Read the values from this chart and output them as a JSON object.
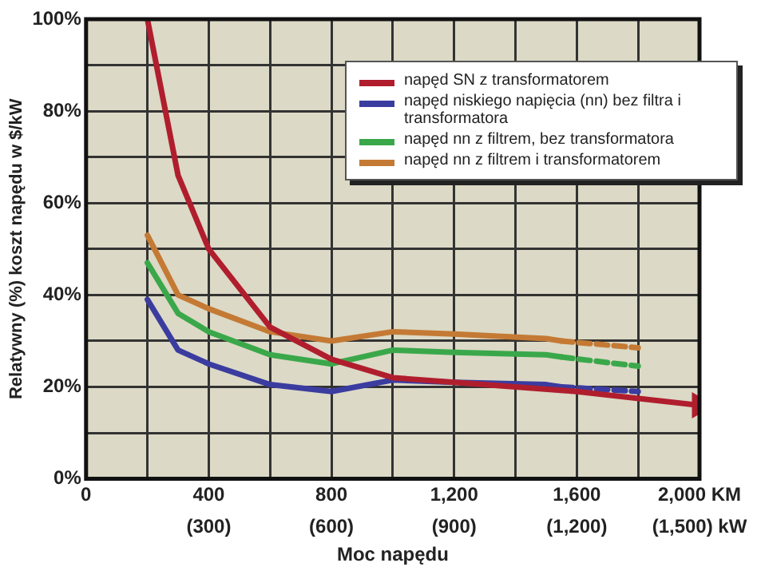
{
  "chart_data": {
    "type": "line",
    "xlabel": "Moc napędu",
    "ylabel": "Relatywny (%) koszt napędu w $/kW",
    "marker": "none",
    "grid": true,
    "legend": "top right",
    "xlim": [
      0,
      2000
    ],
    "xticks": [
      0,
      {
        "value": 200,
        "label": null
      },
      {
        "value": 400,
        "label": "400"
      },
      {
        "value": 600,
        "label": null
      },
      {
        "value": 800,
        "label": "800"
      },
      {
        "value": 1000,
        "label": null
      },
      {
        "value": 1200,
        "label": "1,200"
      },
      {
        "value": 1400,
        "label": null
      },
      {
        "value": 1600,
        "label": "1,600"
      },
      {
        "value": 1800,
        "label": null
      },
      {
        "value": 2000,
        "label": "2,000 KM"
      }
    ],
    "x2lim": [
      0,
      1500
    ],
    "x2ticks": [
      {
        "value": 300,
        "label": "(300)"
      },
      {
        "value": 600,
        "label": "(600)"
      },
      {
        "value": 900,
        "label": "(900)"
      },
      {
        "value": 1200,
        "label": "(1,200)"
      },
      {
        "value": 1500,
        "label": "(1,500) kW"
      }
    ],
    "ylim": [
      0,
      100
    ],
    "yticks": [
      {
        "value": 0,
        "label": "0%"
      },
      {
        "value": 10,
        "label": null
      },
      {
        "value": 20,
        "label": "20%"
      },
      {
        "value": 30,
        "label": null
      },
      {
        "value": 40,
        "label": "40%"
      },
      {
        "value": 50,
        "label": null
      },
      {
        "value": 60,
        "label": "60%"
      },
      {
        "value": 70,
        "label": null
      },
      {
        "value": 80,
        "label": "80%"
      },
      {
        "value": 90,
        "label": null
      },
      {
        "value": 100,
        "label": "100%"
      }
    ],
    "series": [
      {
        "name": "napęd SN z transformatorem",
        "color": "#b01e2e",
        "x": [
          200,
          300,
          400,
          600,
          800,
          1000,
          1200,
          1600,
          2000
        ],
        "values": [
          100,
          66,
          50,
          33,
          26,
          22,
          21,
          19,
          16
        ]
      },
      {
        "name": "napęd niskiego napięcia (nn) bez filtra i transformatora",
        "color": "#3b3ca0",
        "x": [
          200,
          300,
          400,
          600,
          800,
          1000,
          1200,
          1500,
          1550
        ],
        "values": [
          39,
          28,
          25,
          20.5,
          19,
          21.5,
          21,
          20.5,
          20
        ]
      },
      {
        "name": "napęd nn z filtrem, bez transformatora",
        "color": "#3aa84a",
        "x": [
          200,
          300,
          400,
          600,
          800,
          1000,
          1200,
          1500,
          1550
        ],
        "values": [
          47,
          36,
          32,
          27,
          25,
          28,
          27.5,
          27,
          26.5
        ]
      },
      {
        "name": "napęd nn z filtrem i transformatorem",
        "color": "#c47a34",
        "x": [
          200,
          300,
          400,
          600,
          800,
          1000,
          1200,
          1500,
          1550
        ],
        "values": [
          53,
          40,
          37,
          32,
          30,
          32,
          31.5,
          30.5,
          30
        ]
      },
      {
        "color": "#3b3ca0",
        "line_style": "dashed",
        "x": [
          1550,
          1800
        ],
        "values": [
          20,
          19
        ]
      },
      {
        "color": "#3aa84a",
        "line_style": "dashed",
        "x": [
          1550,
          1800
        ],
        "values": [
          26.5,
          24.5
        ]
      },
      {
        "color": "#c47a34",
        "line_style": "dashed",
        "x": [
          1550,
          1800
        ],
        "values": [
          30,
          28.5
        ]
      }
    ]
  }
}
